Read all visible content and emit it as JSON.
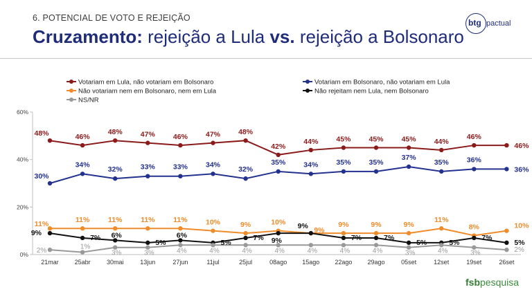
{
  "header": {
    "eyebrow": "6. POTENCIAL DE VOTO E REJEIÇÃO",
    "title_bold_1": "Cruzamento:",
    "title_normal_1": " rejeição a Lula ",
    "title_bold_2": "vs.",
    "title_normal_2": " rejeição a Bolsonaro"
  },
  "brand": {
    "top_mark": "btg",
    "top_name": "pactual",
    "bottom_bold": "fsb",
    "bottom_rest": "pesquisa"
  },
  "colors": {
    "title": "#1f2c7a",
    "dark_red": "#8b1a1a",
    "blue": "#23318f",
    "orange": "#f08b2a",
    "black": "#111111",
    "gray": "#999999"
  },
  "chart_data": {
    "type": "line",
    "categories": [
      "21mar",
      "25abr",
      "30mai",
      "13jun",
      "27jun",
      "11jul",
      "25jul",
      "08ago",
      "15ago",
      "22ago",
      "29ago",
      "05set",
      "12set",
      "19set",
      "26set"
    ],
    "ylim": [
      0,
      60
    ],
    "yticks": [
      "0%",
      "20%",
      "40%",
      "60%"
    ],
    "grid": false,
    "legend_position": "top",
    "series": [
      {
        "name": "Votariam em Lula, não votariam em Bolsonaro",
        "color": "#8b1a1a",
        "values": [
          48,
          46,
          48,
          47,
          46,
          47,
          48,
          42,
          44,
          45,
          45,
          45,
          44,
          46,
          46
        ]
      },
      {
        "name": "Votariam em Bolsonaro, não votariam em Lula",
        "color": "#23318f",
        "values": [
          30,
          34,
          32,
          33,
          33,
          34,
          32,
          35,
          34,
          35,
          35,
          37,
          35,
          36,
          36
        ]
      },
      {
        "name": "Não votariam nem em Bolsonaro, nem em Lula",
        "color": "#f08b2a",
        "values": [
          11,
          11,
          11,
          11,
          11,
          10,
          9,
          10,
          9,
          9,
          9,
          9,
          11,
          8,
          10
        ]
      },
      {
        "name": "Não rejeitam nem Lula, nem Bolsonaro",
        "color": "#111111",
        "values": [
          9,
          7,
          6,
          5,
          6,
          5,
          7,
          9,
          9,
          7,
          7,
          5,
          5,
          7,
          5
        ]
      },
      {
        "name": "NS/NR",
        "color": "#999999",
        "values": [
          2,
          1,
          3,
          3,
          4,
          4,
          4,
          4,
          4,
          4,
          4,
          3,
          4,
          3,
          2
        ]
      }
    ]
  }
}
